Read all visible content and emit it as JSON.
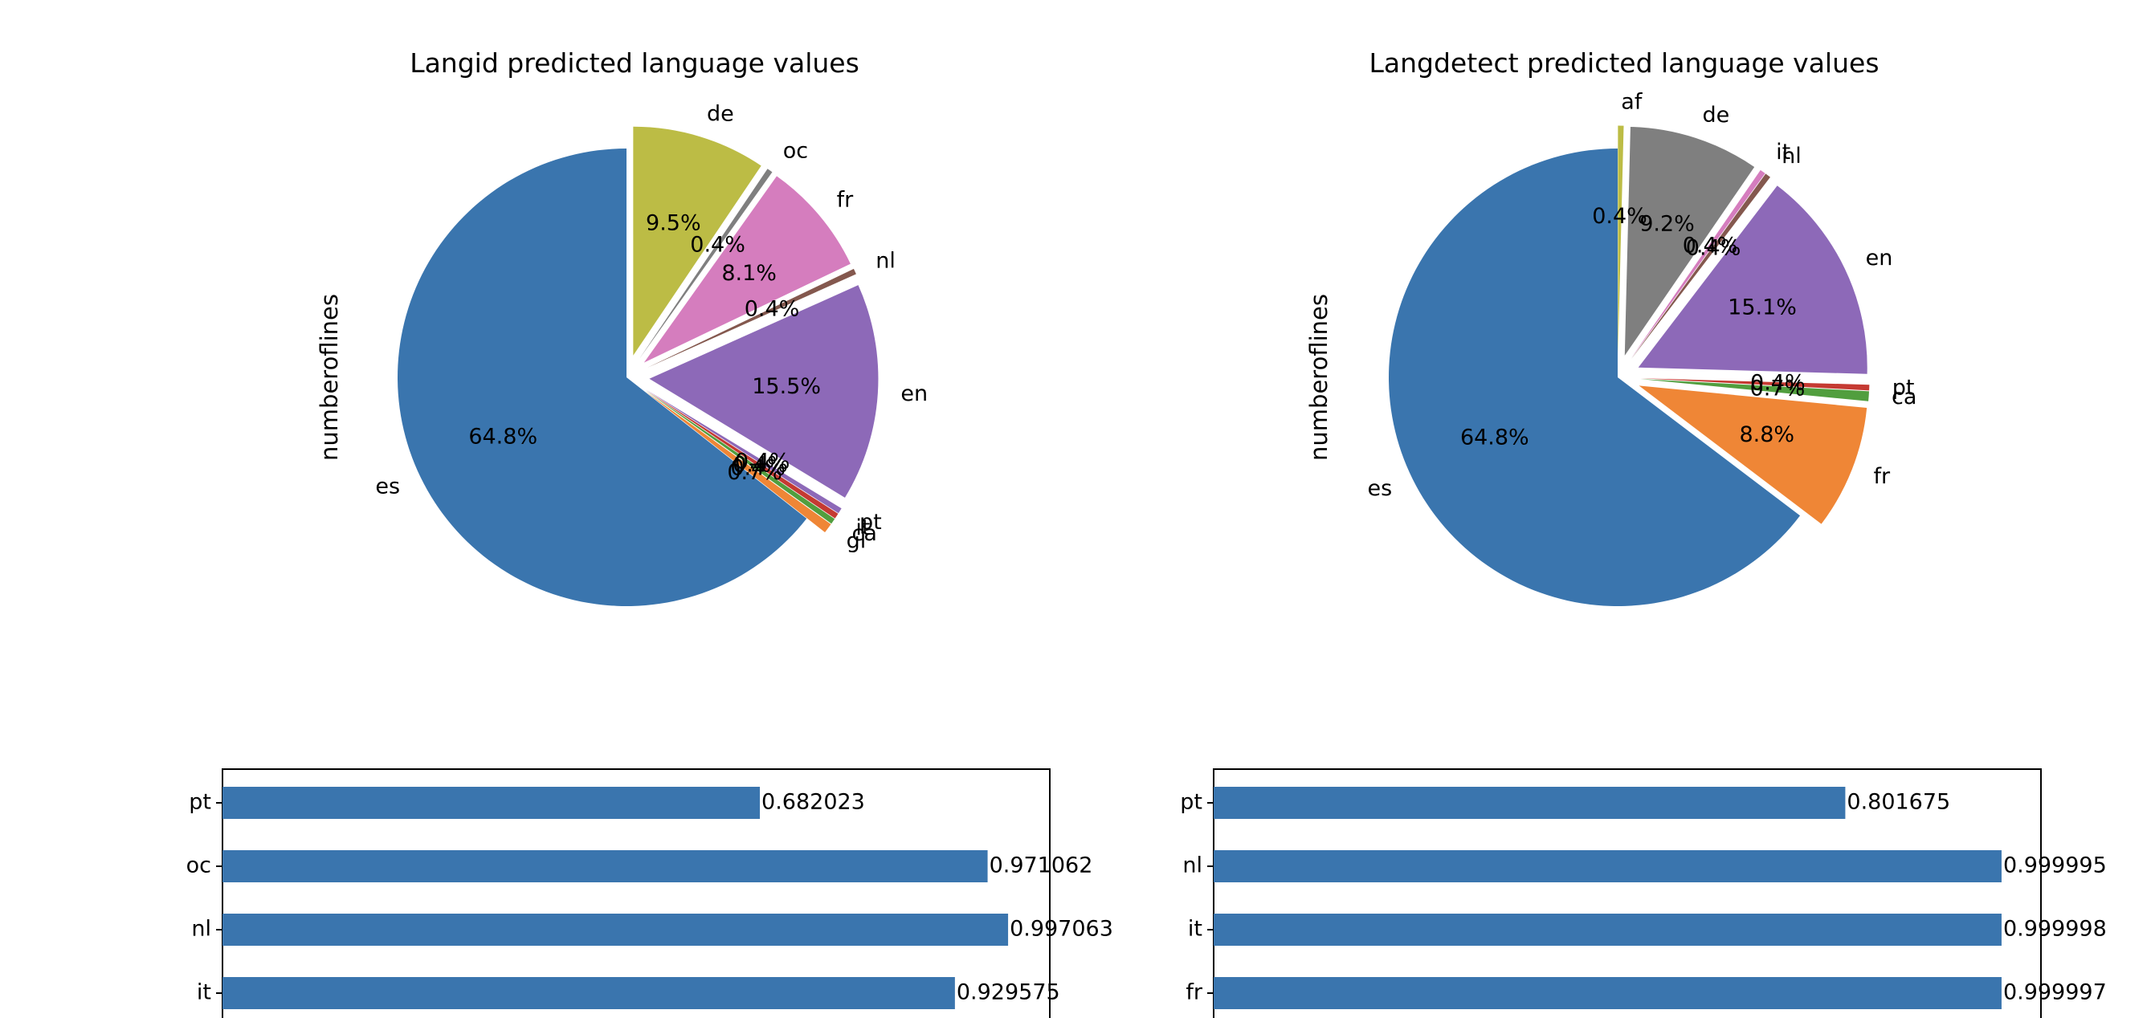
{
  "chart_data": [
    {
      "type": "pie",
      "title": "Langid predicted language values",
      "ylabel": "numberoflines",
      "start_angle_deg": 90,
      "counterclock": true,
      "slices": [
        {
          "label": "es",
          "value": 64.8,
          "pct_label": "64.8%",
          "color": "#3a75ae",
          "explode": 0.0
        },
        {
          "label": "gl",
          "value": 0.7,
          "pct_label": "0.7%",
          "color": "#ef8636",
          "explode": 0.1
        },
        {
          "label": "ca",
          "value": 0.4,
          "pct_label": "0.4%",
          "color": "#519e3e",
          "explode": 0.1
        },
        {
          "label": "it",
          "value": 0.4,
          "pct_label": "0.4%",
          "color": "#c53a32",
          "explode": 0.1
        },
        {
          "label": "pt",
          "value": 0.4,
          "pct_label": "0.4%",
          "color": "#8d69b8",
          "explode": 0.1
        },
        {
          "label": "en",
          "value": 15.5,
          "pct_label": "15.5%",
          "color": "#8d69b8",
          "explode": 0.1
        },
        {
          "label": "nl",
          "value": 0.4,
          "pct_label": "0.4%",
          "color": "#84584e",
          "explode": 0.1
        },
        {
          "label": "fr",
          "value": 8.1,
          "pct_label": "8.1%",
          "color": "#d57dbe",
          "explode": 0.1
        },
        {
          "label": "oc",
          "value": 0.4,
          "pct_label": "0.4%",
          "color": "#7f7f7f",
          "explode": 0.1
        },
        {
          "label": "de",
          "value": 9.5,
          "pct_label": "9.5%",
          "color": "#bcbc45",
          "explode": 0.1
        }
      ]
    },
    {
      "type": "pie",
      "title": "Langdetect predicted language values",
      "ylabel": "numberoflines",
      "start_angle_deg": 90,
      "counterclock": true,
      "slices": [
        {
          "label": "es",
          "value": 64.8,
          "pct_label": "64.8%",
          "color": "#3a75ae",
          "explode": 0.0
        },
        {
          "label": "fr",
          "value": 8.8,
          "pct_label": "8.8%",
          "color": "#ef8636",
          "explode": 0.1
        },
        {
          "label": "ca",
          "value": 0.7,
          "pct_label": "0.7%",
          "color": "#519e3e",
          "explode": 0.1
        },
        {
          "label": "pt",
          "value": 0.4,
          "pct_label": "0.4%",
          "color": "#c53a32",
          "explode": 0.1
        },
        {
          "label": "en",
          "value": 15.1,
          "pct_label": "15.1%",
          "color": "#8d69b8",
          "explode": 0.1
        },
        {
          "label": "nl",
          "value": 0.4,
          "pct_label": "0.4%",
          "color": "#84584e",
          "explode": 0.1
        },
        {
          "label": "it",
          "value": 0.4,
          "pct_label": "0.4%",
          "color": "#d57dbe",
          "explode": 0.1
        },
        {
          "label": "de",
          "value": 9.2,
          "pct_label": "9.2%",
          "color": "#7f7f7f",
          "explode": 0.1
        },
        {
          "label": "af",
          "value": 0.4,
          "pct_label": "0.4%",
          "color": "#bcbc45",
          "explode": 0.1
        }
      ]
    },
    {
      "type": "bar",
      "orientation": "horizontal",
      "categories": [
        "pt",
        "oc",
        "nl",
        "it"
      ],
      "values": [
        0.682023,
        0.971062,
        0.997063,
        0.929575
      ],
      "value_labels": [
        "0.682023",
        "0.971062",
        "0.997063",
        "0.929575"
      ],
      "xlim": [
        0,
        1.05
      ],
      "color": "#3a75ae"
    },
    {
      "type": "bar",
      "orientation": "horizontal",
      "categories": [
        "pt",
        "nl",
        "it",
        "fr"
      ],
      "values": [
        0.801675,
        0.999995,
        0.999998,
        0.999997
      ],
      "value_labels": [
        "0.801675",
        "0.999995",
        "0.999998",
        "0.999997"
      ],
      "xlim": [
        0,
        1.05
      ],
      "color": "#3a75ae"
    }
  ]
}
